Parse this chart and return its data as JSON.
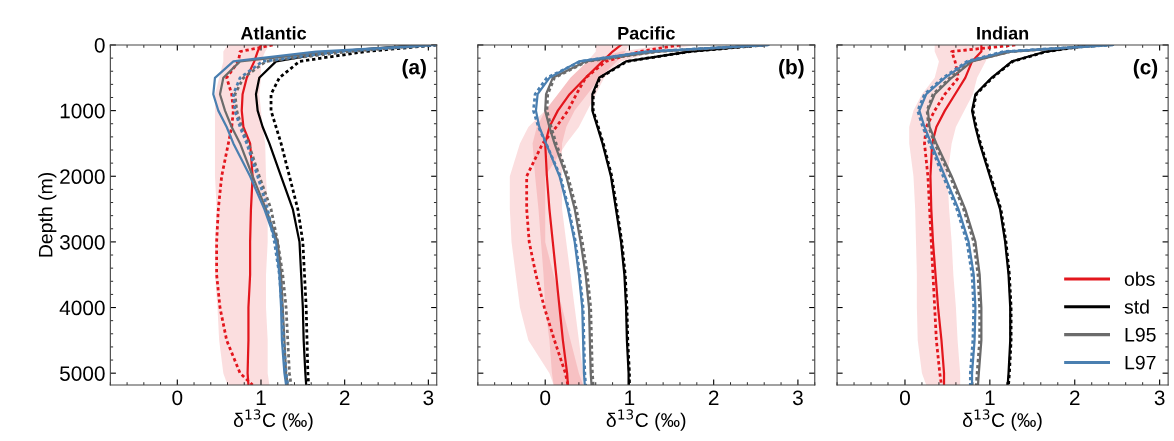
{
  "chart_data": [
    {
      "type": "line",
      "title": "Atlantic",
      "ylabel": "Depth (m)",
      "xlabel": "δ$^{13}$C (‰)",
      "orientation": "horizontal",
      "annotations": [
        "(a)"
      ],
      "x": [
        0,
        100,
        250,
        500,
        750,
        1000,
        1250,
        1500,
        2000,
        2500,
        3000,
        3500,
        4000,
        4500,
        5000,
        5180
      ],
      "xlim": [
        -0.8,
        3.1
      ],
      "xticks": [
        0,
        1,
        2,
        3
      ],
      "ylim": [
        5180,
        0
      ],
      "yticks": [
        0,
        1000,
        2000,
        3000,
        4000,
        5000
      ],
      "series": [
        {
          "color": "#e3161d",
          "line_style": "solid",
          "values": [
            1.0,
            0.96,
            0.92,
            0.83,
            0.78,
            0.77,
            0.79,
            0.87,
            0.9,
            0.88,
            0.87,
            0.87,
            0.85,
            0.85,
            0.84,
            0.85
          ],
          "lower": [
            0.6,
            0.55,
            0.55,
            0.5,
            0.45,
            0.45,
            0.45,
            0.45,
            0.45,
            0.47,
            0.45,
            0.45,
            0.48,
            0.5,
            0.55,
            0.6
          ],
          "upper": [
            1.1,
            1.05,
            1.0,
            1.0,
            0.98,
            1.0,
            1.02,
            1.05,
            1.06,
            1.08,
            1.08,
            1.06,
            1.06,
            1.08,
            1.08,
            1.1
          ]
        },
        {
          "color": "#e3161d",
          "line_style": "dotted",
          "values": [
            1.14,
            0.75,
            0.73,
            0.59,
            0.65,
            0.67,
            0.65,
            0.61,
            0.53,
            0.49,
            0.47,
            0.47,
            0.51,
            0.59,
            0.75,
            0.9
          ]
        },
        {
          "color": "#000000",
          "line_style": "solid",
          "values": [
            2.9,
            1.86,
            1.18,
            0.98,
            0.94,
            0.96,
            1.02,
            1.1,
            1.24,
            1.38,
            1.46,
            1.48,
            1.5,
            1.51,
            1.53,
            1.54
          ]
        },
        {
          "color": "#000000",
          "line_style": "dotted",
          "values": [
            3.1,
            2.25,
            1.46,
            1.22,
            1.12,
            1.12,
            1.18,
            1.24,
            1.34,
            1.44,
            1.5,
            1.52,
            1.54,
            1.55,
            1.56,
            1.57
          ]
        },
        {
          "color": "#6b6b6b",
          "line_style": "solid",
          "values": [
            3.0,
            1.86,
            0.75,
            0.55,
            0.51,
            0.57,
            0.65,
            0.75,
            0.9,
            1.06,
            1.2,
            1.24,
            1.26,
            1.28,
            1.3,
            1.32
          ]
        },
        {
          "color": "#6b6b6b",
          "line_style": "dotted",
          "values": [
            3.0,
            2.06,
            1.06,
            0.79,
            0.69,
            0.71,
            0.77,
            0.85,
            0.98,
            1.12,
            1.2,
            1.26,
            1.3,
            1.32,
            1.34,
            1.36
          ]
        },
        {
          "color": "#4a7fb0",
          "line_style": "solid",
          "values": [
            3.1,
            1.66,
            0.67,
            0.45,
            0.43,
            0.49,
            0.59,
            0.67,
            0.87,
            1.04,
            1.18,
            1.22,
            1.24,
            1.25,
            1.28,
            1.3
          ]
        },
        {
          "color": "#4a7fb0",
          "line_style": "dotted",
          "values": [
            3.1,
            1.94,
            1.02,
            0.75,
            0.67,
            0.69,
            0.75,
            0.83,
            0.96,
            1.08,
            1.16,
            1.22,
            1.25,
            1.27,
            1.3,
            1.32
          ]
        }
      ]
    },
    {
      "type": "line",
      "title": "Pacific",
      "xlabel": "δ$^{13}$C (‰)",
      "orientation": "horizontal",
      "annotations": [
        "(b)"
      ],
      "tick_labels": "x",
      "x": [
        0,
        100,
        250,
        500,
        750,
        1000,
        1250,
        1500,
        2000,
        2500,
        3000,
        3500,
        4000,
        4500,
        5000,
        5180
      ],
      "xlim": [
        -0.8,
        3.2
      ],
      "xticks": [
        0,
        1,
        2,
        3
      ],
      "ylim": [
        5180,
        0
      ],
      "yticks": [
        0,
        1000,
        2000,
        3000,
        4000,
        5000
      ],
      "series": [
        {
          "color": "#e3161d",
          "line_style": "solid",
          "values": [
            0.9,
            0.8,
            0.68,
            0.48,
            0.29,
            0.15,
            0.05,
            0.0,
            0.02,
            0.05,
            0.09,
            0.13,
            0.17,
            0.21,
            0.26,
            0.27
          ],
          "lower": [
            0.6,
            0.6,
            0.5,
            0.3,
            0.15,
            0.0,
            -0.1,
            -0.15,
            -0.12,
            -0.08,
            -0.05,
            -0.02,
            0.0,
            0.05,
            0.08,
            0.1
          ],
          "upper": [
            1.0,
            0.95,
            0.85,
            0.65,
            0.5,
            0.35,
            0.25,
            0.2,
            0.2,
            0.2,
            0.25,
            0.3,
            0.35,
            0.4,
            0.45,
            0.45
          ]
        },
        {
          "color": "#e3161d",
          "line_style": "dotted",
          "values": [
            1.6,
            1.12,
            0.72,
            0.48,
            0.37,
            0.27,
            0.13,
            -0.03,
            -0.22,
            -0.22,
            -0.19,
            -0.11,
            -0.01,
            0.11,
            0.24,
            0.27
          ],
          "lower": [
            1.4,
            0.9,
            0.5,
            0.3,
            0.15,
            0.0,
            -0.2,
            -0.3,
            -0.42,
            -0.42,
            -0.4,
            -0.35,
            -0.3,
            -0.2,
            0.05,
            0.1
          ],
          "upper": [
            1.8,
            1.3,
            0.9,
            0.7,
            0.6,
            0.5,
            0.4,
            0.25,
            0.0,
            0.0,
            0.0,
            0.1,
            0.2,
            0.3,
            0.4,
            0.45
          ]
        },
        {
          "color": "#000000",
          "line_style": "solid",
          "values": [
            2.6,
            1.71,
            0.96,
            0.64,
            0.56,
            0.56,
            0.62,
            0.68,
            0.78,
            0.84,
            0.9,
            0.94,
            0.96,
            0.97,
            0.99,
            0.99
          ]
        },
        {
          "color": "#000000",
          "line_style": "dotted",
          "values": [
            2.6,
            1.72,
            0.97,
            0.65,
            0.57,
            0.57,
            0.63,
            0.69,
            0.79,
            0.85,
            0.91,
            0.95,
            0.97,
            0.98,
            1.0,
            1.0
          ]
        },
        {
          "color": "#6b6b6b",
          "line_style": "solid",
          "values": [
            2.6,
            1.32,
            0.48,
            0.09,
            0.01,
            0.0,
            0.05,
            0.11,
            0.25,
            0.35,
            0.42,
            0.48,
            0.52,
            0.53,
            0.54,
            0.55
          ]
        },
        {
          "color": "#6b6b6b",
          "line_style": "dotted",
          "values": [
            2.6,
            1.34,
            0.5,
            0.11,
            0.03,
            0.02,
            0.07,
            0.13,
            0.27,
            0.37,
            0.44,
            0.5,
            0.54,
            0.55,
            0.56,
            0.57
          ]
        },
        {
          "color": "#4a7fb0",
          "line_style": "solid",
          "values": [
            2.65,
            1.2,
            0.4,
            0.05,
            -0.09,
            -0.11,
            -0.07,
            0.01,
            0.17,
            0.27,
            0.35,
            0.4,
            0.44,
            0.45,
            0.46,
            0.47
          ]
        },
        {
          "color": "#4a7fb0",
          "line_style": "dotted",
          "values": [
            2.65,
            1.22,
            0.42,
            0.02,
            -0.12,
            -0.14,
            -0.08,
            0.01,
            0.18,
            0.28,
            0.36,
            0.41,
            0.45,
            0.46,
            0.47,
            0.48
          ]
        }
      ]
    },
    {
      "type": "line",
      "title": "Indian",
      "xlabel": "δ$^{13}$C (‰)",
      "orientation": "horizontal",
      "annotations": [
        "(c)"
      ],
      "tick_labels": "x",
      "legend": "bottom right",
      "x": [
        0,
        100,
        250,
        500,
        750,
        1000,
        1250,
        1500,
        2000,
        2500,
        3000,
        3500,
        4000,
        4500,
        5000,
        5180
      ],
      "xlim": [
        -0.8,
        3.1
      ],
      "xticks": [
        0,
        1,
        2,
        3
      ],
      "ylim": [
        5180,
        0
      ],
      "yticks": [
        0,
        1000,
        2000,
        3000,
        4000,
        5000
      ],
      "series": [
        {
          "name": "obs",
          "color": "#e3161d",
          "line_style": "solid",
          "values": [
            0.9,
            0.9,
            0.79,
            0.71,
            0.59,
            0.47,
            0.37,
            0.32,
            0.3,
            0.31,
            0.33,
            0.36,
            0.39,
            0.43,
            0.46,
            0.46
          ],
          "lower": [
            0.35,
            0.35,
            0.4,
            0.35,
            0.2,
            0.1,
            0.05,
            0.05,
            0.1,
            0.12,
            0.13,
            0.14,
            0.14,
            0.15,
            0.2,
            0.25
          ],
          "upper": [
            1.0,
            1.0,
            0.95,
            0.85,
            0.8,
            0.7,
            0.6,
            0.55,
            0.5,
            0.52,
            0.55,
            0.57,
            0.6,
            0.62,
            0.65,
            0.65
          ]
        },
        {
          "color": "#e3161d",
          "line_style": "dotted",
          "values": [
            1.3,
            0.55,
            0.59,
            0.63,
            0.47,
            0.35,
            0.25,
            0.23,
            0.27,
            0.29,
            0.31,
            0.33,
            0.35,
            0.37,
            0.41,
            0.43
          ]
        },
        {
          "name": "std",
          "color": "#000000",
          "line_style": "solid",
          "values": [
            2.2,
            1.66,
            1.26,
            1.02,
            0.83,
            0.79,
            0.83,
            0.88,
            1.0,
            1.12,
            1.18,
            1.22,
            1.24,
            1.24,
            1.22,
            1.21
          ]
        },
        {
          "color": "#000000",
          "line_style": "dotted",
          "values": [
            2.2,
            1.67,
            1.27,
            1.03,
            0.84,
            0.8,
            0.84,
            0.89,
            1.01,
            1.13,
            1.19,
            1.23,
            1.25,
            1.25,
            1.23,
            1.22
          ]
        },
        {
          "name": "L95",
          "color": "#6b6b6b",
          "line_style": "solid",
          "values": [
            2.4,
            1.26,
            0.79,
            0.55,
            0.35,
            0.27,
            0.29,
            0.37,
            0.55,
            0.71,
            0.83,
            0.88,
            0.9,
            0.9,
            0.87,
            0.86
          ]
        },
        {
          "color": "#6b6b6b",
          "line_style": "dotted",
          "values": [
            2.4,
            1.24,
            0.77,
            0.53,
            0.33,
            0.26,
            0.28,
            0.35,
            0.53,
            0.69,
            0.81,
            0.86,
            0.88,
            0.88,
            0.85,
            0.84
          ]
        },
        {
          "name": "L97",
          "color": "#4a7fb0",
          "line_style": "solid",
          "values": [
            2.45,
            1.18,
            0.75,
            0.47,
            0.25,
            0.17,
            0.23,
            0.31,
            0.47,
            0.63,
            0.75,
            0.81,
            0.83,
            0.82,
            0.79,
            0.79
          ]
        },
        {
          "color": "#4a7fb0",
          "line_style": "dotted",
          "values": [
            2.45,
            1.16,
            0.73,
            0.45,
            0.23,
            0.15,
            0.21,
            0.29,
            0.45,
            0.61,
            0.73,
            0.79,
            0.81,
            0.8,
            0.77,
            0.77
          ]
        }
      ]
    }
  ]
}
